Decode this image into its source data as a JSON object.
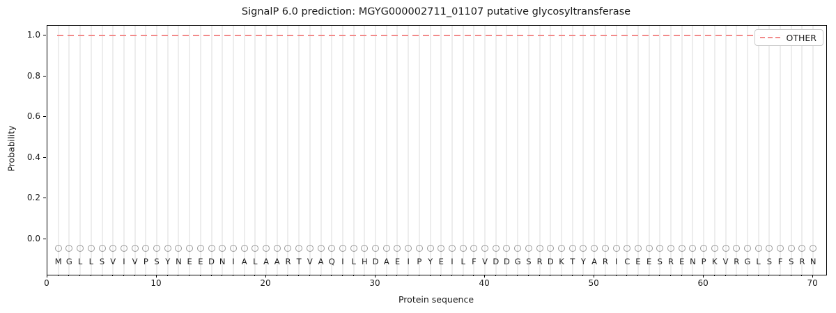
{
  "figure": {
    "title": "SignalP 6.0 prediction: MGYG000002711_01107 putative glycosyltransferase",
    "xlabel": "Protein sequence",
    "ylabel": "Probability",
    "legend": {
      "items": [
        {
          "label": "OTHER",
          "line_style": "dashed",
          "color": "#f28a8a"
        }
      ]
    },
    "x_tick_labels": [
      "0",
      "10",
      "20",
      "30",
      "40",
      "50",
      "60",
      "70"
    ],
    "y_tick_labels": [
      "0.0",
      "0.2",
      "0.4",
      "0.6",
      "0.8",
      "1.0"
    ],
    "colors": {
      "other_line": "#f28a8a",
      "gridline": "#ededed",
      "marker_edge": "#9a9a9a",
      "text": "#1a1a1a",
      "background": "#ffffff",
      "legend_border": "#cccccc"
    }
  },
  "chart_data": {
    "type": "line",
    "title": "SignalP 6.0 prediction: MGYG000002711_01107 putative glycosyltransferase",
    "xlabel": "Protein sequence",
    "ylabel": "Probability",
    "xlim": [
      0,
      71.2
    ],
    "ylim": [
      -0.17,
      1.05
    ],
    "x_ticks": [
      0,
      10,
      20,
      30,
      40,
      50,
      60,
      70
    ],
    "y_ticks": [
      0.0,
      0.2,
      0.4,
      0.6,
      0.8,
      1.0
    ],
    "grid": "vertical-per-residue",
    "legend_position": "upper-right",
    "sequence": "MGLLSVIVPSYNEEDNIALAARTVAQILHDAEIPYEILFVDDGSRDKTYARICEESRENPKVRGLSFSRN",
    "sequence_positions": [
      1,
      2,
      3,
      4,
      5,
      6,
      7,
      8,
      9,
      10,
      11,
      12,
      13,
      14,
      15,
      16,
      17,
      18,
      19,
      20,
      21,
      22,
      23,
      24,
      25,
      26,
      27,
      28,
      29,
      30,
      31,
      32,
      33,
      34,
      35,
      36,
      37,
      38,
      39,
      40,
      41,
      42,
      43,
      44,
      45,
      46,
      47,
      48,
      49,
      50,
      51,
      52,
      53,
      54,
      55,
      56,
      57,
      58,
      59,
      60,
      61,
      62,
      63,
      64,
      65,
      66,
      67,
      68,
      69,
      70
    ],
    "marker_row_y": -0.045,
    "series": [
      {
        "name": "OTHER",
        "style": "dashed",
        "color": "#f28a8a",
        "values": [
          1.0,
          1.0,
          1.0,
          1.0,
          1.0,
          1.0,
          1.0,
          1.0,
          1.0,
          1.0,
          1.0,
          1.0,
          1.0,
          1.0,
          1.0,
          1.0,
          1.0,
          1.0,
          1.0,
          1.0,
          1.0,
          1.0,
          1.0,
          1.0,
          1.0,
          1.0,
          1.0,
          1.0,
          1.0,
          1.0,
          1.0,
          1.0,
          1.0,
          1.0,
          1.0,
          1.0,
          1.0,
          1.0,
          1.0,
          1.0,
          1.0,
          1.0,
          1.0,
          1.0,
          1.0,
          1.0,
          1.0,
          1.0,
          1.0,
          1.0,
          1.0,
          1.0,
          1.0,
          1.0,
          1.0,
          1.0,
          1.0,
          1.0,
          1.0,
          1.0,
          1.0,
          1.0,
          1.0,
          1.0,
          1.0,
          1.0,
          1.0,
          1.0,
          1.0,
          1.0
        ]
      }
    ]
  }
}
